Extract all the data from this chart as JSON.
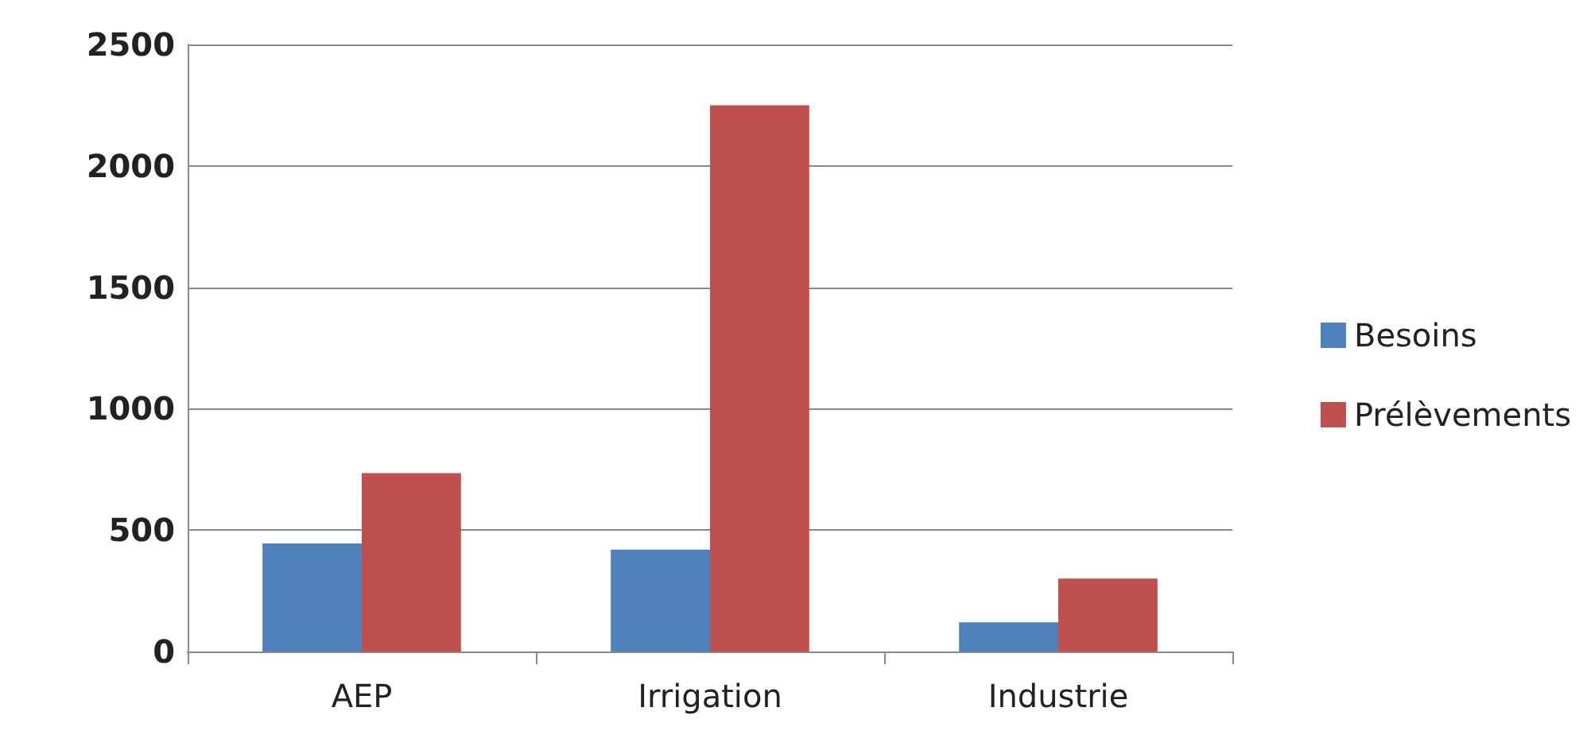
{
  "chart_data": {
    "type": "bar",
    "categories": [
      "AEP",
      "Irrigation",
      "Industrie"
    ],
    "series": [
      {
        "name": "Besoins",
        "color": "#4f81bd",
        "values": [
          445,
          420,
          120
        ]
      },
      {
        "name": "Prélèvements",
        "color": "#c0504d",
        "values": [
          735,
          2250,
          300
        ]
      }
    ],
    "ylim": [
      0,
      2500
    ],
    "yticks": [
      0,
      500,
      1000,
      1500,
      2000,
      2500
    ],
    "grid": "y",
    "legend": "right"
  }
}
